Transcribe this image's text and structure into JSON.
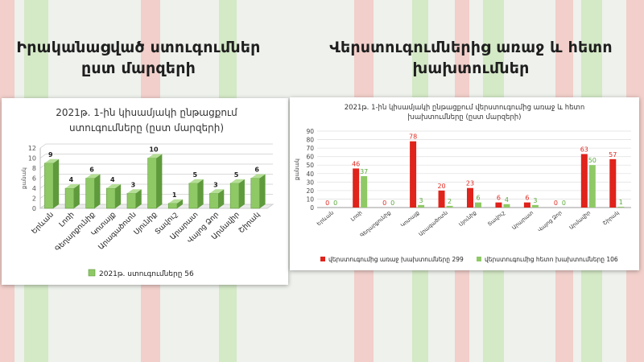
{
  "headings": {
    "left": "Իրականացված ստուգումներ ըստ մարզերի",
    "right": "Վերստուգումներից առաջ և հետո խախտումներ"
  },
  "colors": {
    "green": "#8fc966",
    "green_dark": "#5f9a3c",
    "red": "#e0231b",
    "red_label": "#e02a22",
    "green_label": "#5aa83a",
    "background_red": "#f6b3ae",
    "background_green": "#bfe2a8"
  },
  "chart_data": [
    {
      "type": "bar",
      "title_lines": [
        "2021թ. 1-ին կիսամյակի ընթացքում",
        "ստուգումները (ըստ մարզերի)"
      ],
      "categories": [
        "Երևան",
        "Լոռի",
        "Գեղարքունիք",
        "Կոտայք",
        "Արագածոտն",
        "Սյունիք",
        "Տավուշ",
        "Արարատ",
        "Վայոց Ձոր",
        "Արմավիր",
        "Շիրակ"
      ],
      "series": [
        {
          "name": "2021թ. ստուգումները  56",
          "values": [
            9,
            4,
            6,
            4,
            3,
            10,
            1,
            5,
            3,
            5,
            6
          ]
        }
      ],
      "ylabel": "քանակ",
      "ylim": [
        0,
        12
      ],
      "yticks": [
        0,
        2,
        4,
        6,
        8,
        10,
        12
      ],
      "grid": true,
      "legend": "bottom",
      "style": "3d"
    },
    {
      "type": "bar",
      "title_lines": [
        "2021թ. 1-ին կիսամյակի ընթացքում վերստուգումից առաջ և հետո",
        "խախտումները (ըստ մարզերի)"
      ],
      "categories": [
        "Երևան",
        "Լոռի",
        "Գեղարքունիք",
        "Կոտայք",
        "Արագածոտն",
        "Սյունիք",
        "Տավուշ",
        "Արարատ",
        "Վայոց Ձոր",
        "Արմավիր",
        "Շիրակ"
      ],
      "series": [
        {
          "name": "վերստուգումից  առաջ խախտումները 299",
          "values": [
            0,
            46,
            0,
            78,
            20,
            23,
            6,
            6,
            0,
            63,
            57
          ]
        },
        {
          "name": "վերստուգումից հետո խախտումները 106",
          "values": [
            0,
            37,
            0,
            3,
            2,
            6,
            4,
            3,
            0,
            50,
            1
          ]
        }
      ],
      "ylabel": "քանակ",
      "ylim": [
        0,
        90
      ],
      "yticks": [
        0,
        10,
        20,
        30,
        40,
        50,
        60,
        70,
        80,
        90
      ],
      "grid": true,
      "legend": "bottom"
    }
  ]
}
